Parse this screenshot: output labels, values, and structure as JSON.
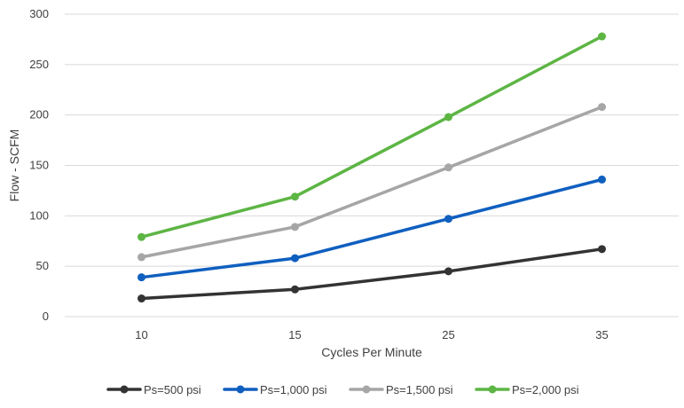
{
  "chart_data": {
    "type": "line",
    "title": "",
    "xlabel": "Cycles Per Minute",
    "ylabel": "Flow - SCFM",
    "categories": [
      "10",
      "15",
      "25",
      "35"
    ],
    "ylim": [
      0,
      300
    ],
    "yticks": [
      0,
      50,
      100,
      150,
      200,
      250,
      300
    ],
    "grid": true,
    "legend": "bottom",
    "series": [
      {
        "name": "Ps=500 psi",
        "color": "#333333",
        "values": [
          18,
          27,
          45,
          67
        ]
      },
      {
        "name": "Ps=1,000 psi",
        "color": "#0f5fbf",
        "values": [
          39,
          58,
          97,
          136
        ]
      },
      {
        "name": "Ps=1,500 psi",
        "color": "#a6a6a6",
        "values": [
          59,
          89,
          148,
          208
        ]
      },
      {
        "name": "Ps=2,000 psi",
        "color": "#5db544",
        "values": [
          79,
          119,
          198,
          278
        ]
      }
    ]
  }
}
